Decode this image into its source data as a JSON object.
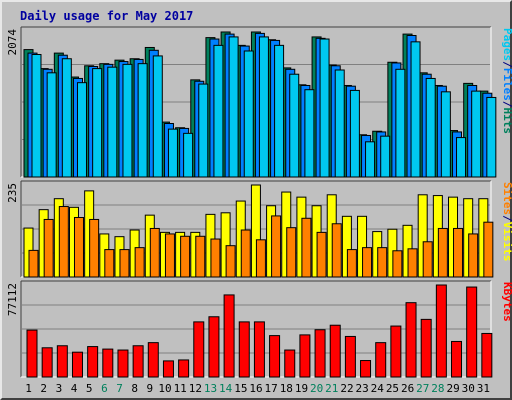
{
  "title": "Daily usage for May 2017",
  "colors": {
    "background": "#c0c0c0",
    "title": "#0000a0",
    "hits": "#00805c",
    "files": "#0080ff",
    "pages": "#00c8f0",
    "visits": "#ffff00",
    "sites": "#ff8000",
    "kbytes": "#ff0000",
    "weekend_label": "#00805c",
    "separator": "#000000"
  },
  "chart_data": [
    {
      "type": "bar",
      "panel": "hits",
      "ylabel_parts": [
        {
          "text": "Pages",
          "color": "#00c8f0"
        },
        {
          "text": "/",
          "color": "#000080"
        },
        {
          "text": "Files",
          "color": "#0080ff"
        },
        {
          "text": "/",
          "color": "#000080"
        },
        {
          "text": "Hits",
          "color": "#00805c"
        }
      ],
      "ymax_label": "2074",
      "ylim": [
        0,
        2074
      ],
      "grid": true,
      "categories": [
        "1",
        "2",
        "3",
        "4",
        "5",
        "6",
        "7",
        "8",
        "9",
        "10",
        "11",
        "12",
        "13",
        "14",
        "15",
        "16",
        "17",
        "18",
        "19",
        "20",
        "21",
        "22",
        "23",
        "24",
        "25",
        "26",
        "27",
        "28",
        "29",
        "30",
        "31"
      ],
      "weekend_days": [
        "6",
        "7",
        "13",
        "14",
        "20",
        "21",
        "27",
        "28"
      ],
      "series": [
        {
          "name": "Hits",
          "values": [
            1810,
            1540,
            1760,
            1420,
            1580,
            1610,
            1660,
            1680,
            1840,
            780,
            700,
            1380,
            1980,
            2060,
            1870,
            2060,
            1950,
            1550,
            1310,
            1990,
            1590,
            1300,
            600,
            650,
            1630,
            2030,
            1480,
            1300,
            660,
            1330,
            1220
          ]
        },
        {
          "name": "Files",
          "values": [
            1760,
            1530,
            1730,
            1400,
            1570,
            1600,
            1640,
            1670,
            1800,
            760,
            690,
            1360,
            1960,
            2030,
            1860,
            2040,
            1940,
            1530,
            1300,
            1970,
            1580,
            1290,
            590,
            640,
            1620,
            2010,
            1460,
            1290,
            640,
            1300,
            1190
          ]
        },
        {
          "name": "Pages",
          "values": [
            1740,
            1480,
            1680,
            1340,
            1540,
            1560,
            1600,
            1610,
            1720,
            680,
            620,
            1320,
            1870,
            1990,
            1790,
            1990,
            1870,
            1460,
            1240,
            1960,
            1520,
            1230,
            500,
            580,
            1530,
            1920,
            1400,
            1210,
            560,
            1220,
            1130
          ]
        }
      ]
    },
    {
      "type": "bar",
      "panel": "visits",
      "ylabel_parts": [
        {
          "text": "Sites",
          "color": "#ff8000"
        },
        {
          "text": "/",
          "color": "#000080"
        },
        {
          "text": "Visits",
          "color": "#ffff00"
        }
      ],
      "ymax_label": "235",
      "ylim": [
        0,
        235
      ],
      "grid": true,
      "categories": [
        "1",
        "2",
        "3",
        "4",
        "5",
        "6",
        "7",
        "8",
        "9",
        "10",
        "11",
        "12",
        "13",
        "14",
        "15",
        "16",
        "17",
        "18",
        "19",
        "20",
        "21",
        "22",
        "23",
        "24",
        "25",
        "26",
        "27",
        "28",
        "29",
        "30",
        "31"
      ],
      "series": [
        {
          "name": "Visits",
          "values": [
            125,
            172,
            200,
            178,
            220,
            110,
            103,
            120,
            158,
            114,
            114,
            114,
            160,
            164,
            194,
            235,
            182,
            217,
            204,
            182,
            210,
            155,
            155,
            116,
            122,
            132,
            210,
            208,
            204,
            200,
            200
          ]
        },
        {
          "name": "Sites",
          "values": [
            68,
            147,
            180,
            152,
            147,
            70,
            70,
            75,
            124,
            110,
            104,
            104,
            97,
            80,
            120,
            95,
            156,
            126,
            150,
            114,
            136,
            70,
            75,
            75,
            67,
            72,
            90,
            124,
            124,
            110,
            140
          ]
        }
      ]
    },
    {
      "type": "bar",
      "panel": "kbytes",
      "ylabel_parts": [
        {
          "text": "KBytes",
          "color": "#ff0000"
        }
      ],
      "ymax_label": "77112",
      "ylim": [
        0,
        77112
      ],
      "grid": true,
      "categories": [
        "1",
        "2",
        "3",
        "4",
        "5",
        "6",
        "7",
        "8",
        "9",
        "10",
        "11",
        "12",
        "13",
        "14",
        "15",
        "16",
        "17",
        "18",
        "19",
        "20",
        "21",
        "22",
        "23",
        "24",
        "25",
        "26",
        "27",
        "28",
        "29",
        "30",
        "31"
      ],
      "series": [
        {
          "name": "KBytes",
          "values": [
            39300,
            24500,
            26200,
            20800,
            25500,
            23400,
            22600,
            26200,
            28800,
            13500,
            14300,
            46200,
            50500,
            68800,
            46200,
            46200,
            34700,
            22600,
            35300,
            39600,
            43400,
            34000,
            13800,
            28800,
            42700,
            62300,
            48300,
            77112,
            29800,
            75400,
            36500
          ]
        }
      ]
    }
  ]
}
